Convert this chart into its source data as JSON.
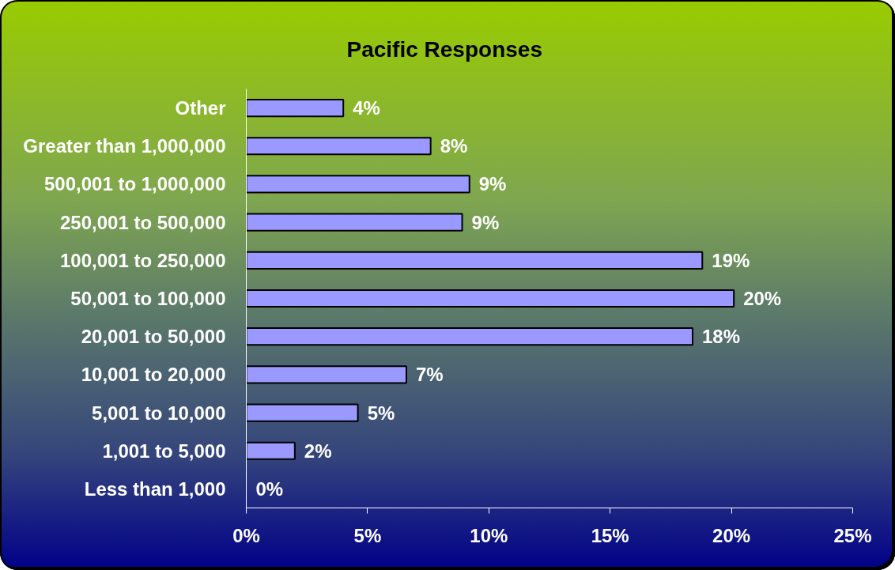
{
  "chart_data": {
    "type": "bar",
    "orientation": "horizontal",
    "title": "Pacific Responses",
    "categories": [
      "Other",
      "Greater than 1,000,000",
      "500,001 to 1,000,000",
      "250,001 to 500,000",
      "100,001 to 250,000",
      "50,001 to 100,000",
      "20,001 to 50,000",
      "10,001 to 20,000",
      "5,001 to 10,000",
      "1,001 to 5,000",
      "Less than 1,000"
    ],
    "values": [
      4.0,
      7.6,
      9.2,
      8.9,
      18.8,
      20.1,
      18.4,
      6.6,
      4.6,
      2.0,
      0
    ],
    "value_labels": [
      "4%",
      "8%",
      "9%",
      "9%",
      "19%",
      "20%",
      "18%",
      "7%",
      "5%",
      "2%",
      "0%"
    ],
    "color": "#9999ff",
    "xlim": [
      0,
      25
    ],
    "xticks": [
      {
        "value": 0,
        "label": "0%"
      },
      {
        "value": 5,
        "label": "5%"
      },
      {
        "value": 10,
        "label": "10%"
      },
      {
        "value": 15,
        "label": "15%"
      },
      {
        "value": 20,
        "label": "20%"
      },
      {
        "value": 25,
        "label": "25%"
      }
    ],
    "grid": false
  }
}
